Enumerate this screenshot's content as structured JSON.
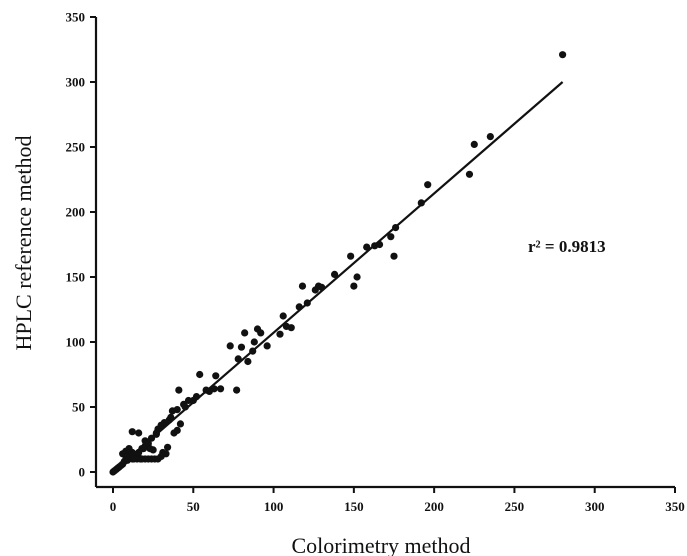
{
  "chart_data": {
    "type": "scatter",
    "xlabel": "Colorimetry method",
    "ylabel": "HPLC reference method",
    "xlim": [
      0,
      350
    ],
    "ylim": [
      0,
      350
    ],
    "xticks": [
      0,
      50,
      100,
      150,
      200,
      250,
      300,
      350
    ],
    "yticks": [
      0,
      50,
      100,
      150,
      200,
      250,
      300,
      350
    ],
    "annotation": "r² = 0.9813",
    "fit_line": {
      "x": [
        0,
        280
      ],
      "y": [
        0,
        300
      ]
    },
    "grid": false,
    "points": [
      [
        0,
        0
      ],
      [
        1,
        1
      ],
      [
        2,
        2
      ],
      [
        3,
        3
      ],
      [
        4,
        4
      ],
      [
        5,
        5
      ],
      [
        6,
        6
      ],
      [
        7,
        8
      ],
      [
        8,
        10
      ],
      [
        10,
        12
      ],
      [
        12,
        10
      ],
      [
        14,
        12
      ],
      [
        15,
        10
      ],
      [
        16,
        11
      ],
      [
        18,
        10
      ],
      [
        20,
        10
      ],
      [
        22,
        10
      ],
      [
        24,
        10
      ],
      [
        26,
        10
      ],
      [
        12,
        15
      ],
      [
        6,
        14
      ],
      [
        8,
        16
      ],
      [
        10,
        18
      ],
      [
        12,
        31
      ],
      [
        16,
        30
      ],
      [
        16,
        15
      ],
      [
        18,
        18
      ],
      [
        20,
        20
      ],
      [
        20,
        24
      ],
      [
        22,
        22
      ],
      [
        24,
        26
      ],
      [
        25,
        17
      ],
      [
        27,
        29
      ],
      [
        28,
        33
      ],
      [
        30,
        36
      ],
      [
        32,
        38
      ],
      [
        33,
        14
      ],
      [
        34,
        19
      ],
      [
        35,
        40
      ],
      [
        37,
        47
      ],
      [
        38,
        30
      ],
      [
        40,
        32
      ],
      [
        40,
        48
      ],
      [
        41,
        63
      ],
      [
        42,
        37
      ],
      [
        45,
        50
      ],
      [
        47,
        55
      ],
      [
        50,
        55
      ],
      [
        52,
        58
      ],
      [
        54,
        75
      ],
      [
        58,
        63
      ],
      [
        60,
        62
      ],
      [
        63,
        64
      ],
      [
        64,
        74
      ],
      [
        67,
        64
      ],
      [
        73,
        97
      ],
      [
        77,
        63
      ],
      [
        78,
        87
      ],
      [
        80,
        96
      ],
      [
        82,
        107
      ],
      [
        84,
        85
      ],
      [
        87,
        93
      ],
      [
        88,
        100
      ],
      [
        90,
        110
      ],
      [
        92,
        107
      ],
      [
        96,
        97
      ],
      [
        104,
        106
      ],
      [
        106,
        120
      ],
      [
        108,
        112
      ],
      [
        111,
        111
      ],
      [
        116,
        127
      ],
      [
        118,
        143
      ],
      [
        121,
        130
      ],
      [
        126,
        140
      ],
      [
        128,
        143
      ],
      [
        130,
        142
      ],
      [
        138,
        152
      ],
      [
        148,
        166
      ],
      [
        150,
        143
      ],
      [
        152,
        150
      ],
      [
        158,
        173
      ],
      [
        163,
        174
      ],
      [
        166,
        175
      ],
      [
        173,
        181
      ],
      [
        175,
        166
      ],
      [
        176,
        188
      ],
      [
        192,
        207
      ],
      [
        196,
        221
      ],
      [
        222,
        229
      ],
      [
        225,
        252
      ],
      [
        235,
        258
      ],
      [
        280,
        321
      ],
      [
        28,
        10
      ],
      [
        30,
        12
      ],
      [
        31,
        15
      ],
      [
        19,
        18
      ],
      [
        23,
        18
      ],
      [
        27,
        30
      ],
      [
        36,
        42
      ],
      [
        44,
        52
      ],
      [
        17,
        10
      ],
      [
        9,
        9
      ],
      [
        11,
        11
      ],
      [
        13,
        10
      ]
    ]
  }
}
